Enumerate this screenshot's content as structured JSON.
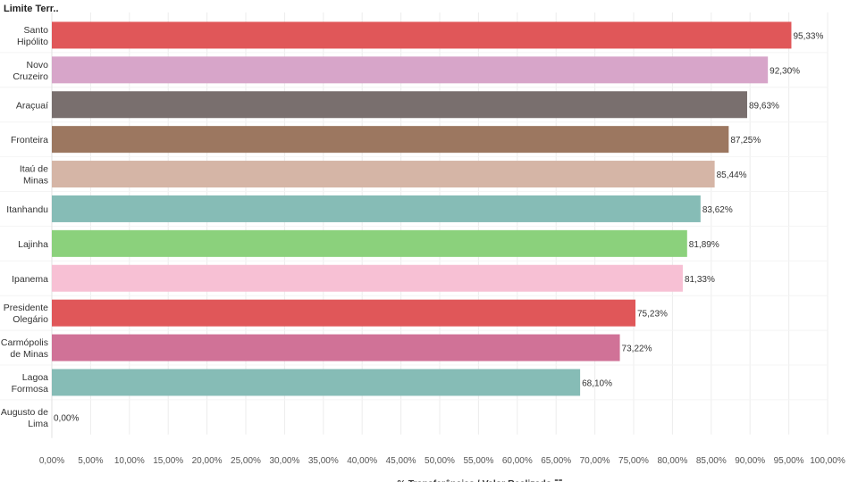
{
  "chart_data": {
    "type": "bar",
    "orientation": "horizontal",
    "row_header": "Limite Terr..",
    "xlabel": "% Transferências / Valor Realizado",
    "xlabel_suffix": "☱",
    "xlim": [
      0,
      100
    ],
    "x_ticks": [
      "0,00%",
      "5,00%",
      "10,00%",
      "15,00%",
      "20,00%",
      "25,00%",
      "30,00%",
      "35,00%",
      "40,00%",
      "45,00%",
      "50,00%",
      "55,00%",
      "60,00%",
      "65,00%",
      "70,00%",
      "75,00%",
      "80,00%",
      "85,00%",
      "90,00%",
      "95,00%",
      "100,00%"
    ],
    "x_tick_values": [
      0,
      5,
      10,
      15,
      20,
      25,
      30,
      35,
      40,
      45,
      50,
      55,
      60,
      65,
      70,
      75,
      80,
      85,
      90,
      95,
      100
    ],
    "categories": [
      [
        "Santo",
        "Hipólito"
      ],
      [
        "Novo",
        "Cruzeiro"
      ],
      [
        "Araçuaí"
      ],
      [
        "Fronteira"
      ],
      [
        "Itaú de",
        "Minas"
      ],
      [
        "Itanhandu"
      ],
      [
        "Lajinha"
      ],
      [
        "Ipanema"
      ],
      [
        "Presidente",
        "Olegário"
      ],
      [
        "Carmópolis",
        "de Minas"
      ],
      [
        "Lagoa",
        "Formosa"
      ],
      [
        "Augusto de",
        "Lima"
      ]
    ],
    "values": [
      95.33,
      92.3,
      89.63,
      87.25,
      85.44,
      83.62,
      81.89,
      81.33,
      75.23,
      73.22,
      68.1,
      0.0
    ],
    "value_labels": [
      "95,33%",
      "92,30%",
      "89,63%",
      "87,25%",
      "85,44%",
      "83,62%",
      "81,89%",
      "81,33%",
      "75,23%",
      "73,22%",
      "68,10%",
      "0,00%"
    ],
    "colors": [
      "#e05759",
      "#d7a5c9",
      "#796f6e",
      "#9c7760",
      "#d5b5a6",
      "#86bcb6",
      "#8bd17c",
      "#f7c0d4",
      "#e05759",
      "#d07297",
      "#86bcb6",
      "#86bcb6"
    ],
    "gridlines": true
  }
}
